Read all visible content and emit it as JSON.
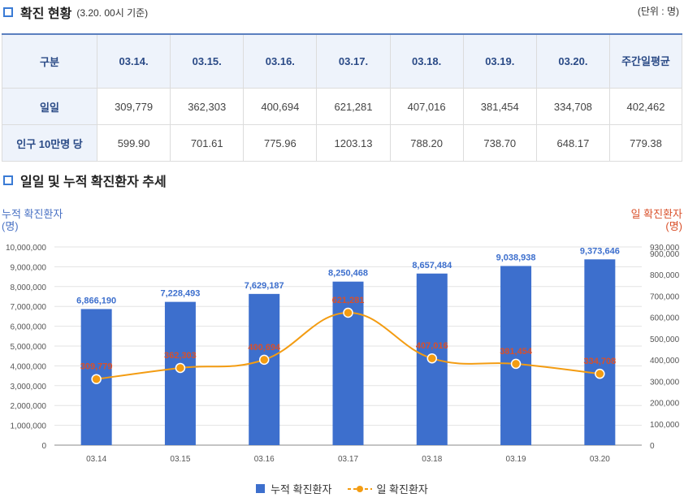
{
  "header": {
    "title": "확진 현황",
    "subtitle": "(3.20. 00시 기준)",
    "unit": "(단위 : 명)"
  },
  "table": {
    "columns": [
      "구분",
      "03.14.",
      "03.15.",
      "03.16.",
      "03.17.",
      "03.18.",
      "03.19.",
      "03.20.",
      "주간일평균"
    ],
    "rows": [
      [
        "일일",
        "309,779",
        "362,303",
        "400,694",
        "621,281",
        "407,016",
        "381,454",
        "334,708",
        "402,462"
      ],
      [
        "인구 10만명 당",
        "599.90",
        "701.61",
        "775.96",
        "1203.13",
        "788.20",
        "738.70",
        "648.17",
        "779.38"
      ]
    ]
  },
  "chart_section": {
    "title": "일일 및 누적 확진환자 추세",
    "left_axis_title": "누적 확진환자",
    "left_axis_unit": "(명)",
    "right_axis_title": "일 확진환자",
    "right_axis_unit": "(명)"
  },
  "chart_data": {
    "type": "bar",
    "categories": [
      "03.14",
      "03.15",
      "03.16",
      "03.17",
      "03.18",
      "03.19",
      "03.20"
    ],
    "series": [
      {
        "name": "누적 확진환자",
        "type": "bar",
        "axis": "left",
        "color": "#3d6fcd",
        "values": [
          6866190,
          7228493,
          7629187,
          8250468,
          8657484,
          9038938,
          9373646
        ],
        "labels": [
          "6,866,190",
          "7,228,493",
          "7,629,187",
          "8,250,468",
          "8,657,484",
          "9,038,938",
          "9,373,646"
        ]
      },
      {
        "name": "일 확진환자",
        "type": "line",
        "axis": "right",
        "color": "#f39c12",
        "values": [
          309779,
          362303,
          400694,
          621281,
          407016,
          381454,
          334708
        ],
        "labels": [
          "309,779",
          "362,303",
          "400,694",
          "621,281",
          "407,016",
          "381,454",
          "334,708"
        ]
      }
    ],
    "y_left": {
      "min": 0,
      "max": 10000000,
      "ticks": [
        0,
        1000000,
        2000000,
        3000000,
        4000000,
        5000000,
        6000000,
        7000000,
        8000000,
        9000000,
        10000000
      ],
      "tick_labels": [
        "0",
        "1,000,000",
        "2,000,000",
        "3,000,000",
        "4,000,000",
        "5,000,000",
        "6,000,000",
        "7,000,000",
        "8,000,000",
        "9,000,000",
        "10,000,000"
      ]
    },
    "y_right": {
      "min": 0,
      "max": 930000,
      "ticks": [
        0,
        100000,
        200000,
        300000,
        400000,
        500000,
        600000,
        700000,
        800000,
        900000,
        930000
      ],
      "tick_labels": [
        "0",
        "100,000",
        "200,000",
        "300,000",
        "400,000",
        "500,000",
        "600,000",
        "700,000",
        "800,000",
        "900,000",
        "930,000"
      ]
    },
    "grid": true,
    "legend_position": "bottom",
    "bar_label_color": "#3d6fcd",
    "line_label_color": "#d9502a"
  }
}
